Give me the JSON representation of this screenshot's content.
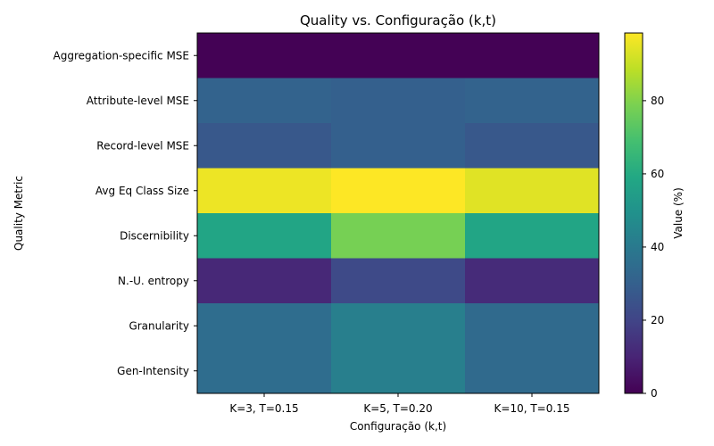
{
  "chart_data": {
    "type": "heatmap",
    "title": "Quality vs. Configuração (k,t)",
    "xlabel": "Configuração (k,t)",
    "ylabel": "Quality Metric",
    "colorbar_label": "Value (%)",
    "colormap": "viridis",
    "vmin": 0,
    "vmax": 98.5,
    "colorbar_ticks": [
      0,
      20,
      40,
      60,
      80
    ],
    "x_categories": [
      "K=3, T=0.15",
      "K=5, T=0.20",
      "K=10, T=0.15"
    ],
    "y_categories": [
      "Aggregation-specific MSE",
      "Attribute-level MSE",
      "Record-level MSE",
      "Avg Eq Class Size",
      "Discernibility",
      "N.-U. entropy",
      "Granularity",
      "Gen-Intensity"
    ],
    "values": [
      [
        0.3,
        0.3,
        0.3
      ],
      [
        31,
        30,
        31
      ],
      [
        27,
        30,
        27
      ],
      [
        96,
        98.5,
        94
      ],
      [
        58,
        78,
        58
      ],
      [
        11,
        22,
        12
      ],
      [
        35,
        42,
        34
      ],
      [
        35,
        42,
        34
      ]
    ]
  }
}
